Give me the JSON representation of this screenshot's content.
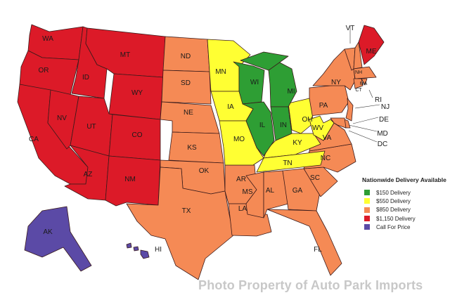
{
  "legend": {
    "title": "Nationwide Delivery Available",
    "items": [
      {
        "label": "$150 Delivery",
        "color": "#2e9e34"
      },
      {
        "label": "$550 Delivery",
        "color": "#ffff33"
      },
      {
        "label": "$850 Delivery",
        "color": "#f58a55"
      },
      {
        "label": "$1,150 Delivery",
        "color": "#dc1a28"
      },
      {
        "label": "Call For Price",
        "color": "#5b4aa6"
      }
    ]
  },
  "tiers": {
    "green": "#2e9e34",
    "yellow": "#ffff33",
    "orange": "#f58a55",
    "red": "#dc1a28",
    "purple": "#5b4aa6"
  },
  "states": [
    {
      "abbr": "WA",
      "tier": "red"
    },
    {
      "abbr": "OR",
      "tier": "red"
    },
    {
      "abbr": "CA",
      "tier": "red"
    },
    {
      "abbr": "NV",
      "tier": "red"
    },
    {
      "abbr": "ID",
      "tier": "red"
    },
    {
      "abbr": "MT",
      "tier": "red"
    },
    {
      "abbr": "WY",
      "tier": "red"
    },
    {
      "abbr": "UT",
      "tier": "red"
    },
    {
      "abbr": "CO",
      "tier": "red"
    },
    {
      "abbr": "AZ",
      "tier": "red"
    },
    {
      "abbr": "NM",
      "tier": "red"
    },
    {
      "abbr": "ME",
      "tier": "red"
    },
    {
      "abbr": "ND",
      "tier": "orange"
    },
    {
      "abbr": "SD",
      "tier": "orange"
    },
    {
      "abbr": "NE",
      "tier": "orange"
    },
    {
      "abbr": "KS",
      "tier": "orange"
    },
    {
      "abbr": "OK",
      "tier": "orange"
    },
    {
      "abbr": "TX",
      "tier": "orange"
    },
    {
      "abbr": "AR",
      "tier": "orange"
    },
    {
      "abbr": "LA",
      "tier": "orange"
    },
    {
      "abbr": "MS",
      "tier": "orange"
    },
    {
      "abbr": "AL",
      "tier": "orange"
    },
    {
      "abbr": "GA",
      "tier": "orange"
    },
    {
      "abbr": "FL",
      "tier": "orange"
    },
    {
      "abbr": "SC",
      "tier": "orange"
    },
    {
      "abbr": "NC",
      "tier": "orange"
    },
    {
      "abbr": "VA",
      "tier": "orange"
    },
    {
      "abbr": "PA",
      "tier": "orange"
    },
    {
      "abbr": "NY",
      "tier": "orange"
    },
    {
      "abbr": "VT",
      "tier": "orange"
    },
    {
      "abbr": "NH",
      "tier": "orange"
    },
    {
      "abbr": "MA",
      "tier": "orange"
    },
    {
      "abbr": "CT",
      "tier": "orange"
    },
    {
      "abbr": "RI",
      "tier": "orange"
    },
    {
      "abbr": "NJ",
      "tier": "orange"
    },
    {
      "abbr": "DE",
      "tier": "orange"
    },
    {
      "abbr": "MD",
      "tier": "orange"
    },
    {
      "abbr": "DC",
      "tier": "orange"
    },
    {
      "abbr": "MN",
      "tier": "yellow"
    },
    {
      "abbr": "IA",
      "tier": "yellow"
    },
    {
      "abbr": "MO",
      "tier": "yellow"
    },
    {
      "abbr": "KY",
      "tier": "yellow"
    },
    {
      "abbr": "TN",
      "tier": "yellow"
    },
    {
      "abbr": "OH",
      "tier": "yellow"
    },
    {
      "abbr": "WV",
      "tier": "yellow"
    },
    {
      "abbr": "WI",
      "tier": "green"
    },
    {
      "abbr": "MI",
      "tier": "green"
    },
    {
      "abbr": "IL",
      "tier": "green"
    },
    {
      "abbr": "IN",
      "tier": "green"
    },
    {
      "abbr": "AK",
      "tier": "purple"
    },
    {
      "abbr": "HI",
      "tier": "purple"
    }
  ],
  "watermark": "Photo Property of Auto Park Imports"
}
